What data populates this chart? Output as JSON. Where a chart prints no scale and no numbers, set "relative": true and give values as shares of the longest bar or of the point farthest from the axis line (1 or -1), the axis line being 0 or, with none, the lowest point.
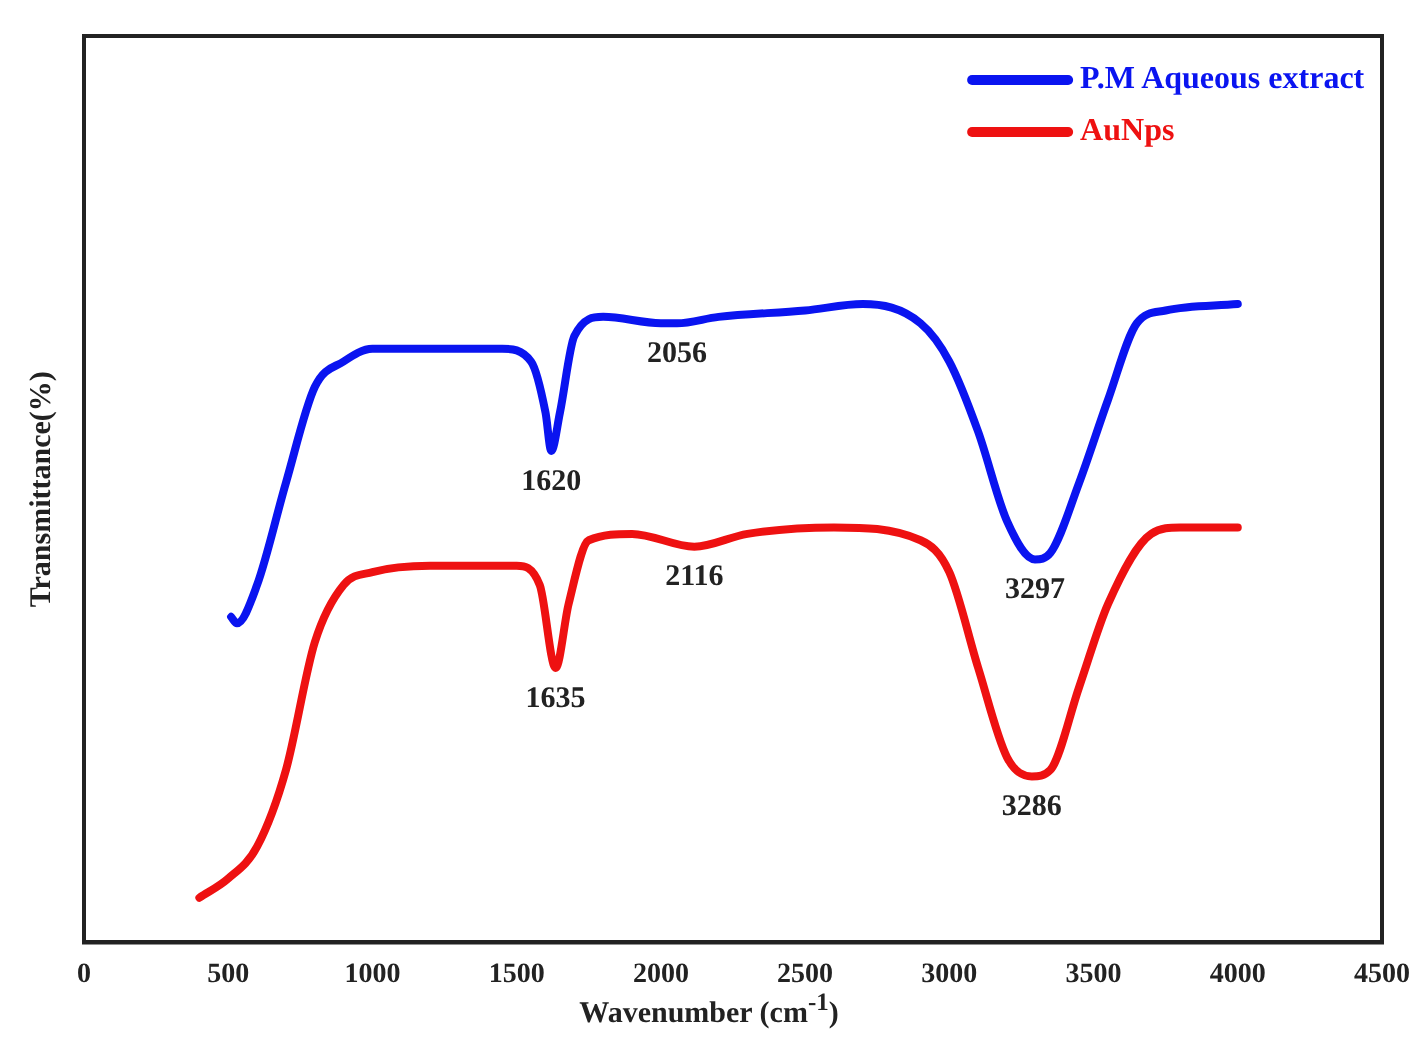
{
  "chart_data": {
    "type": "line",
    "relative": true,
    "xlabel": "Wavenumber (cm$^{-1}$)",
    "ylabel": "Transmittance(%)",
    "xlim": [
      0,
      4500
    ],
    "xticks": [
      0,
      500,
      1000,
      1500,
      2000,
      2500,
      3000,
      3500,
      4000,
      4500
    ],
    "grid": false,
    "legend": "top right",
    "marker": "none",
    "line_style": "solid",
    "series": [
      {
        "name": "P.M Aqueous extract",
        "color": "#0a14f0",
        "x": [
          510,
          530,
          600,
          700,
          800,
          900,
          1000,
          1200,
          1450,
          1550,
          1600,
          1620,
          1650,
          1700,
          1800,
          2000,
          2056,
          2200,
          2500,
          2700,
          2900,
          3000,
          3100,
          3200,
          3297,
          3350,
          3450,
          3550,
          3650,
          3750,
          4000
        ],
        "values": [
          0.51,
          0.5,
          0.56,
          0.72,
          0.87,
          0.91,
          0.93,
          0.93,
          0.93,
          0.91,
          0.83,
          0.77,
          0.83,
          0.95,
          0.98,
          0.97,
          0.97,
          0.98,
          0.99,
          1.0,
          0.97,
          0.91,
          0.8,
          0.66,
          0.6,
          0.61,
          0.72,
          0.85,
          0.97,
          0.99,
          1.0
        ]
      },
      {
        "name": "AuNps",
        "color": "#ee1111",
        "x": [
          400,
          500,
          600,
          700,
          800,
          900,
          1000,
          1200,
          1500,
          1580,
          1635,
          1680,
          1750,
          1900,
          2116,
          2300,
          2600,
          2900,
          3000,
          3100,
          3200,
          3286,
          3350,
          3450,
          3550,
          3700,
          3800,
          4000
        ],
        "values": [
          0.07,
          0.1,
          0.15,
          0.27,
          0.47,
          0.56,
          0.58,
          0.59,
          0.59,
          0.56,
          0.43,
          0.53,
          0.63,
          0.64,
          0.62,
          0.64,
          0.65,
          0.63,
          0.58,
          0.43,
          0.29,
          0.26,
          0.27,
          0.4,
          0.53,
          0.64,
          0.65,
          0.65
        ]
      }
    ],
    "annotations": [
      {
        "text": "1620",
        "x": 1620,
        "y": 0.77
      },
      {
        "text": "2056",
        "x": 2056,
        "y": 0.97
      },
      {
        "text": "3297",
        "x": 3297,
        "y": 0.6
      },
      {
        "text": "1635",
        "x": 1635,
        "y": 0.43
      },
      {
        "text": "2116",
        "x": 2116,
        "y": 0.62
      },
      {
        "text": "3286",
        "x": 3286,
        "y": 0.26
      }
    ]
  }
}
